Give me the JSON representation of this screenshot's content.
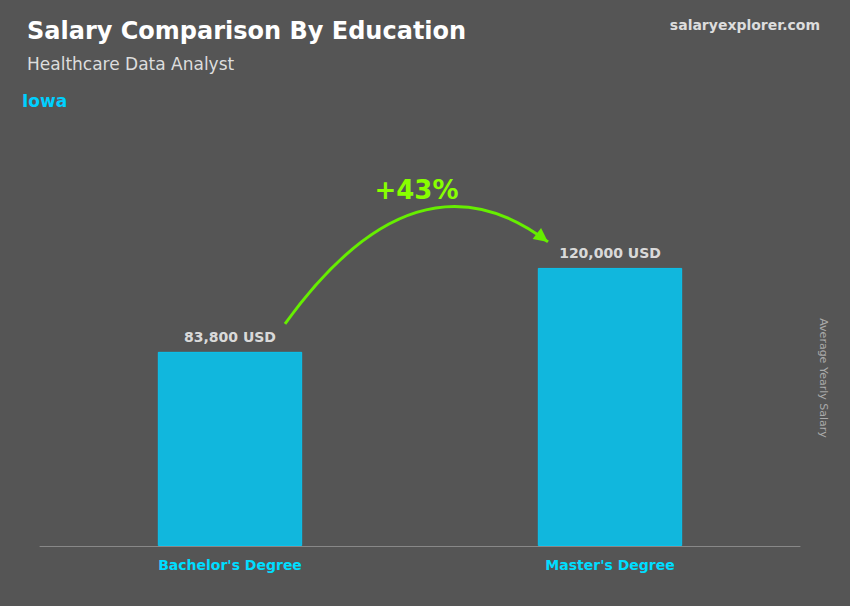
{
  "chart_data": {
    "type": "bar",
    "title": "Salary Comparison By Education",
    "subtitle": "Healthcare Data Analyst",
    "annotations": [
      "Iowa",
      "+43%",
      "salaryexplorer.com"
    ],
    "ylabel": "Average Yearly Salary",
    "categories": [
      "Bachelor's Degree",
      "Master's Degree"
    ],
    "values": [
      83800,
      120000
    ],
    "value_labels": [
      "83,800 USD",
      "120,000 USD"
    ],
    "color": "#00CFFF",
    "ylim": [
      0,
      145000
    ],
    "data_labels": true,
    "tick_labels": "x",
    "grid": false
  }
}
